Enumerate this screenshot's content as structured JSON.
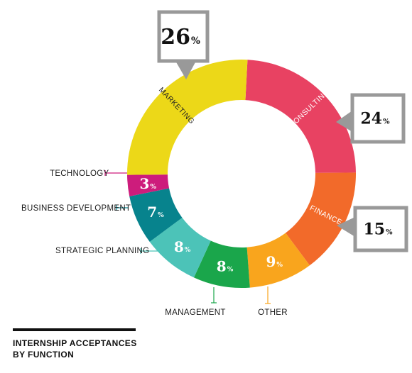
{
  "chart_data": {
    "type": "pie",
    "title_lines": [
      "INTERNSHIP ACCEPTANCES",
      "BY FUNCTION"
    ],
    "percent_symbol": "%",
    "slices": [
      {
        "label": "CONSULTING",
        "value": 24,
        "color": "#e84262",
        "text_color": "#ffffff"
      },
      {
        "label": "FINANCE",
        "value": 15,
        "color": "#f26a2a",
        "text_color": "#ffffff"
      },
      {
        "label": "OTHER",
        "value": 9,
        "color": "#f9a51d",
        "text_color": "#ffffff"
      },
      {
        "label": "MANAGEMENT",
        "value": 8,
        "color": "#1aa64b",
        "text_color": "#ffffff"
      },
      {
        "label": "STRATEGIC PLANNING",
        "value": 8,
        "color": "#4cc3b8",
        "text_color": "#ffffff"
      },
      {
        "label": "BUSINESS DEVELOPMENT",
        "value": 7,
        "color": "#07838d",
        "text_color": "#ffffff"
      },
      {
        "label": "TECHNOLOGY",
        "value": 3,
        "color": "#cd1c7c",
        "text_color": "#ffffff"
      },
      {
        "label": "MARKETING",
        "value": 26,
        "color": "#ecd818",
        "text_color": "#222222"
      }
    ],
    "callout_box_fill": "#ffffff",
    "callout_box_border": "#999999"
  }
}
